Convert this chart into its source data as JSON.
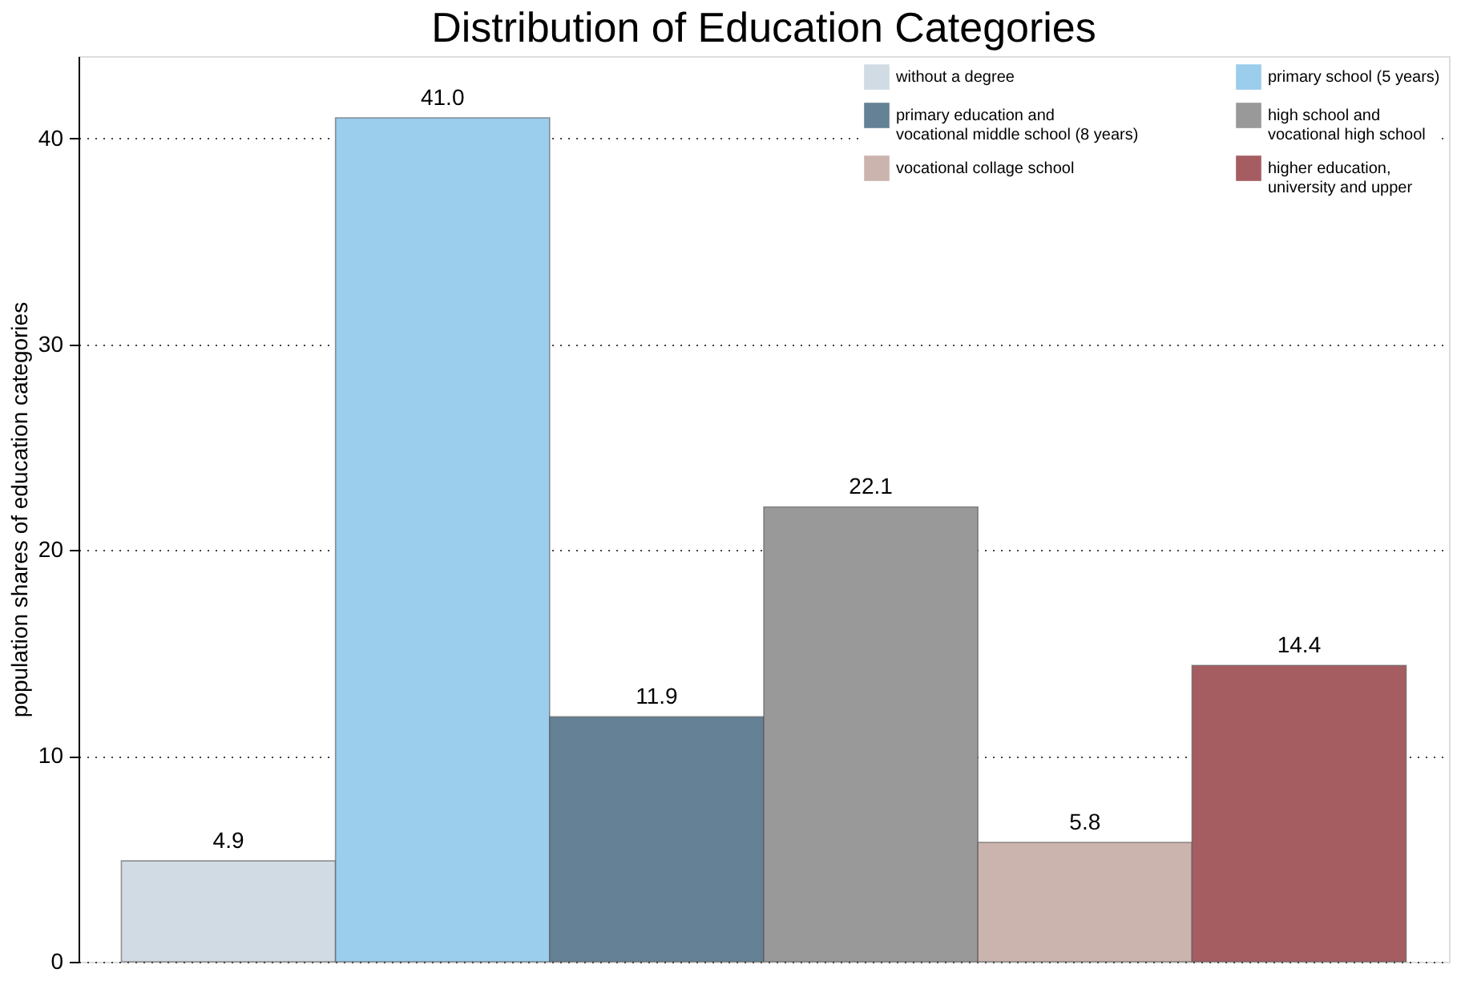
{
  "chart_data": {
    "type": "bar",
    "title": "Distribution of Education Categories",
    "ylabel": "population shares of education categories",
    "categories": [
      null
    ],
    "series": [
      {
        "name": "without a degree",
        "color": "#d1dbe4",
        "values": [
          4.9
        ],
        "value_labels": [
          "4.9"
        ]
      },
      {
        "name": "primary school (5 years)",
        "color": "#9bcdec",
        "values": [
          41.0
        ],
        "value_labels": [
          "41.0"
        ]
      },
      {
        "name": "primary education and vocational middle school (8 years)",
        "color": "#648196",
        "values": [
          11.9
        ],
        "value_labels": [
          "11.9"
        ]
      },
      {
        "name": "high school and vocational high school",
        "color": "#999999",
        "values": [
          22.1
        ],
        "value_labels": [
          "22.1"
        ]
      },
      {
        "name": "vocational collage school",
        "color": "#cbb3ae",
        "values": [
          5.8
        ],
        "value_labels": [
          "5.8"
        ]
      },
      {
        "name": "higher education, university and upper",
        "color": "#a65d62",
        "values": [
          14.4
        ],
        "value_labels": [
          "14.4"
        ]
      }
    ],
    "ylim": [
      0,
      44
    ],
    "yticks": [
      0,
      10,
      20,
      30,
      40
    ],
    "grid": "y",
    "legend": "top right"
  }
}
